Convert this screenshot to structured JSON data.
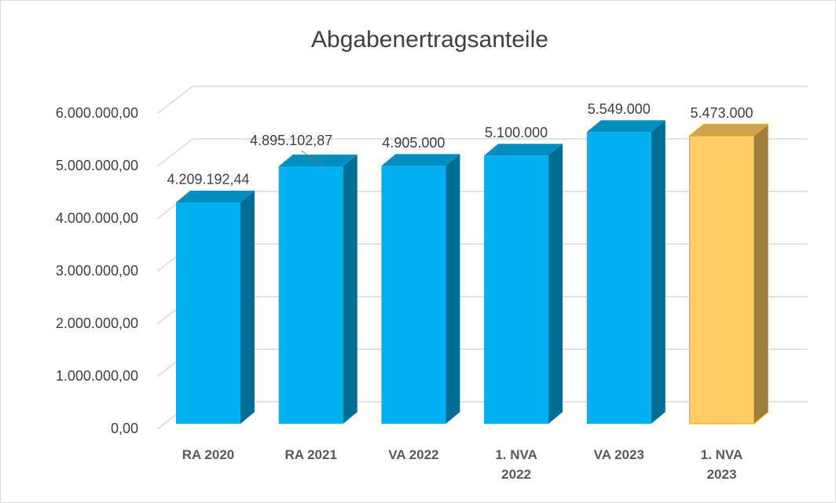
{
  "chart_data": {
    "type": "bar3d",
    "title": "Abgabenertragsanteile",
    "categories": [
      "RA 2020",
      "RA 2021",
      "VA 2022",
      "1. NVA 2022",
      "VA 2023",
      "1. NVA 2023"
    ],
    "values": [
      4209192.44,
      4895102.87,
      4905000,
      5100000,
      5549000,
      5473000
    ],
    "value_labels": [
      "4.209.192,44",
      "4.895.102,87",
      "4.905.000",
      "5.100.000",
      "5.549.000",
      "5.473.000"
    ],
    "colors": [
      "#00b0f0",
      "#00b0f0",
      "#00b0f0",
      "#00b0f0",
      "#00b0f0",
      "#ffcc66"
    ],
    "ylim": [
      0,
      6000000
    ],
    "yticks": [
      {
        "value": 0,
        "label": "0,00"
      },
      {
        "value": 1000000,
        "label": "1.000.000,00"
      },
      {
        "value": 2000000,
        "label": "2.000.000,00"
      },
      {
        "value": 3000000,
        "label": "3.000.000,00"
      },
      {
        "value": 4000000,
        "label": "4.000.000,00"
      },
      {
        "value": 5000000,
        "label": "5.000.000,00"
      },
      {
        "value": 6000000,
        "label": "6.000.000,00"
      }
    ],
    "grid": true
  }
}
